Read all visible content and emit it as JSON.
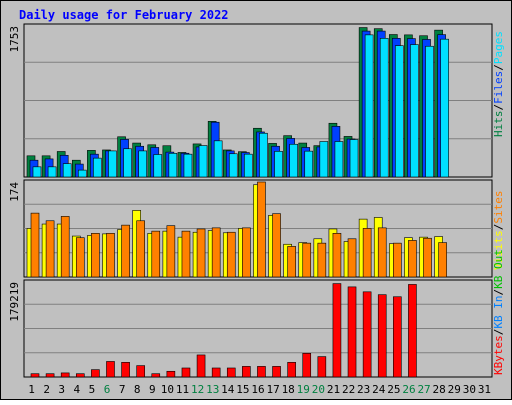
{
  "chart_data": {
    "title": "Daily usage for February 2022",
    "type": "bar",
    "x": [
      "1",
      "2",
      "3",
      "4",
      "5",
      "6",
      "7",
      "8",
      "9",
      "10",
      "11",
      "12",
      "13",
      "14",
      "15",
      "16",
      "17",
      "18",
      "19",
      "20",
      "21",
      "22",
      "23",
      "24",
      "25",
      "26",
      "27",
      "28",
      "29",
      "30",
      "31"
    ],
    "weekend_days": [
      6,
      12,
      13,
      19,
      20,
      26,
      27
    ],
    "colors": {
      "background": "#c0c0c0",
      "frame_outer": "#d8d8d8",
      "panel_bg": "#c0c0c0",
      "grid": "#808080",
      "title": "#0000ff",
      "tick_label": "#000000",
      "weekend_label": "#008040",
      "hits": "#008040",
      "files": "#0040ff",
      "pages": "#00e0ff",
      "visits": "#ffff00",
      "sites": "#ff8000",
      "kb_in": "#0080ff",
      "kb_out": "#00c000",
      "kb_f": "#ff0000"
    },
    "panels": [
      {
        "name": "hits-panel",
        "max_label": "1753",
        "ymax": 1753,
        "legend": [
          {
            "text": "Hits",
            "color": "#008040"
          },
          {
            "text": "/",
            "color": "#000000"
          },
          {
            "text": "Files",
            "color": "#0040ff"
          },
          {
            "text": "/",
            "color": "#000000"
          },
          {
            "text": "Pages",
            "color": "#00e0ff"
          }
        ],
        "series": [
          {
            "name": "Hits",
            "color": "#008040",
            "values": [
              246,
              246,
              296,
              195,
              309,
              314,
              467,
              394,
              374,
              363,
              285,
              384,
              646,
              314,
              294,
              566,
              390,
              480,
              394,
              364,
              624,
              471,
              1735,
              1722,
              1654,
              1650,
              1640,
              1705,
              0,
              0,
              0
            ]
          },
          {
            "name": "Files",
            "color": "#0040ff",
            "values": [
              195,
              210,
              252,
              150,
              265,
              303,
              437,
              357,
              343,
              289,
              276,
              349,
              636,
              303,
              284,
              523,
              357,
              448,
              343,
              349,
              588,
              441,
              1694,
              1694,
              1610,
              1607,
              1597,
              1653,
              0,
              0,
              0
            ]
          },
          {
            "name": "Pages",
            "color": "#00e0ff",
            "values": [
              118,
              118,
              155,
              80,
              219,
              303,
              328,
              303,
              261,
              275,
              265,
              365,
              420,
              270,
              265,
              508,
              298,
              380,
              300,
              412,
              412,
              435,
              1650,
              1610,
              1525,
              1537,
              1518,
              1600,
              0,
              0,
              0
            ]
          }
        ]
      },
      {
        "name": "visits-panel",
        "max_label": "174",
        "ymax": 174,
        "legend": [
          {
            "text": "Visits",
            "color": "#ffff00"
          },
          {
            "text": "/",
            "color": "#000000"
          },
          {
            "text": "Sites",
            "color": "#ff8000"
          }
        ],
        "series": [
          {
            "name": "Visits",
            "color": "#ffff00",
            "values": [
              89,
              97,
              97,
              75,
              76,
              79,
              87,
              122,
              80,
              84,
              73,
              82,
              85,
              81,
              89,
              169,
              113,
              60,
              63,
              70,
              88,
              65,
              106,
              109,
              61,
              72,
              73,
              74,
              0,
              0,
              0
            ]
          },
          {
            "name": "Sites",
            "color": "#ff8000",
            "values": [
              117,
              103,
              111,
              72,
              80,
              80,
              95,
              103,
              84,
              94,
              84,
              88,
              90,
              82,
              90,
              174,
              116,
              56,
              62,
              62,
              80,
              70,
              89,
              90,
              62,
              67,
              71,
              63,
              0,
              0,
              0
            ]
          }
        ]
      },
      {
        "name": "kbytes-panel",
        "max_label": "179219",
        "ymax": 179219,
        "legend": [
          {
            "text": "KBytes",
            "color": "#ff0000"
          },
          {
            "text": "/",
            "color": "#000000"
          },
          {
            "text": "KB In",
            "color": "#0080ff"
          },
          {
            "text": "/",
            "color": "#000000"
          },
          {
            "text": "KB Out",
            "color": "#00c000"
          }
        ],
        "series": [
          {
            "name": "KBytes",
            "color": "#ff0000",
            "values": [
              6200,
              6200,
              7700,
              6200,
              13900,
              29300,
              27700,
              21500,
              6200,
              10800,
              17000,
              41600,
              17000,
              17000,
              20000,
              20000,
              20000,
              27700,
              44700,
              38500,
              176200,
              170000,
              160700,
              155300,
              151400,
              174600,
              0,
              0,
              0,
              0,
              0
            ]
          }
        ]
      }
    ]
  }
}
